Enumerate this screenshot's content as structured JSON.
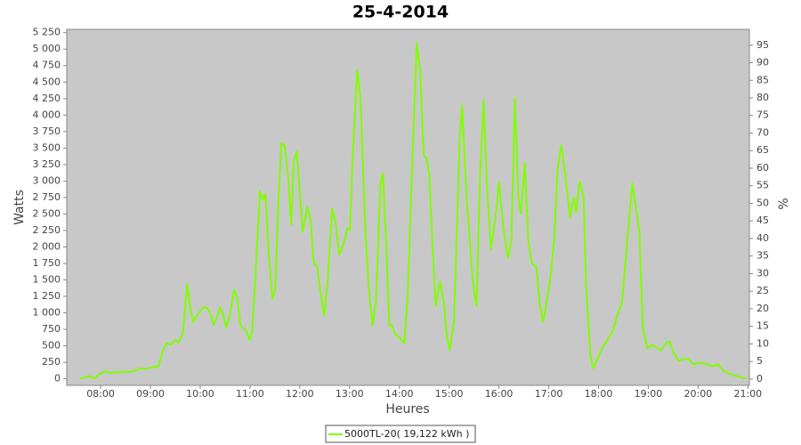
{
  "chart_data": {
    "type": "line",
    "title": "25-4-2014",
    "x_label": "Heures",
    "y_label": "Watts",
    "y2_label": "%",
    "xlim": [
      7.32,
      21.03
    ],
    "xticks": [
      {
        "value": 8,
        "label": "08:00"
      },
      {
        "value": 9,
        "label": "09:00"
      },
      {
        "value": 10,
        "label": "10:00"
      },
      {
        "value": 11,
        "label": "11:00"
      },
      {
        "value": 12,
        "label": "12:00"
      },
      {
        "value": 13,
        "label": "13:00"
      },
      {
        "value": 14,
        "label": "14:00"
      },
      {
        "value": 15,
        "label": "15:00"
      },
      {
        "value": 16,
        "label": "16:00"
      },
      {
        "value": 17,
        "label": "17:00"
      },
      {
        "value": 18,
        "label": "18:00"
      },
      {
        "value": 19,
        "label": "19:00"
      },
      {
        "value": 20,
        "label": "20:00"
      },
      {
        "value": 21,
        "label": "21:00"
      }
    ],
    "ylim": [
      -100,
      5300
    ],
    "yticks": [
      0,
      250,
      500,
      750,
      {
        "value": 1000,
        "label": "1 000"
      },
      {
        "value": 1250,
        "label": "1 250"
      },
      {
        "value": 1500,
        "label": "1 500"
      },
      {
        "value": 1750,
        "label": "1 750"
      },
      {
        "value": 2000,
        "label": "2 000"
      },
      {
        "value": 2250,
        "label": "2 250"
      },
      {
        "value": 2500,
        "label": "2 500"
      },
      {
        "value": 2750,
        "label": "2 750"
      },
      {
        "value": 3000,
        "label": "3 000"
      },
      {
        "value": 3250,
        "label": "3 250"
      },
      {
        "value": 3500,
        "label": "3 500"
      },
      {
        "value": 3750,
        "label": "3 750"
      },
      {
        "value": 4000,
        "label": "4 000"
      },
      {
        "value": 4250,
        "label": "4 250"
      },
      {
        "value": 4500,
        "label": "4 500"
      },
      {
        "value": 4750,
        "label": "4 750"
      },
      {
        "value": 5000,
        "label": "5 000"
      },
      {
        "value": 5250,
        "label": "5 250"
      }
    ],
    "y2lim": [
      -1.8,
      99.5
    ],
    "y2ticks": [
      0,
      5,
      10,
      15,
      20,
      25,
      30,
      35,
      40,
      45,
      50,
      55,
      60,
      65,
      70,
      75,
      80,
      85,
      90,
      95
    ],
    "grid": false,
    "legend": "bottom",
    "x": [
      7.59,
      7.77,
      7.87,
      8.0,
      8.09,
      8.2,
      8.3,
      8.66,
      8.79,
      8.89,
      9.02,
      9.16,
      9.25,
      9.32,
      9.41,
      9.5,
      9.57,
      9.65,
      9.74,
      9.81,
      9.86,
      9.91,
      10.06,
      10.13,
      10.2,
      10.27,
      10.34,
      10.4,
      10.45,
      10.52,
      10.59,
      10.68,
      10.74,
      10.81,
      10.92,
      10.99,
      11.04,
      11.1,
      11.2,
      11.26,
      11.31,
      11.38,
      11.45,
      11.51,
      11.56,
      11.63,
      11.7,
      11.76,
      11.83,
      11.88,
      11.94,
      11.99,
      12.06,
      12.15,
      12.22,
      12.28,
      12.35,
      12.42,
      12.49,
      12.56,
      12.65,
      12.72,
      12.79,
      12.87,
      12.96,
      13.01,
      13.06,
      13.15,
      13.22,
      13.31,
      13.38,
      13.46,
      13.53,
      13.62,
      13.67,
      13.74,
      13.8,
      13.85,
      13.92,
      14.01,
      14.1,
      14.17,
      14.26,
      14.35,
      14.42,
      14.49,
      14.55,
      14.6,
      14.67,
      14.73,
      14.82,
      14.89,
      14.96,
      15.01,
      15.1,
      15.21,
      15.26,
      15.35,
      15.48,
      15.55,
      15.62,
      15.69,
      15.76,
      15.84,
      15.92,
      16.0,
      16.09,
      16.18,
      16.25,
      16.32,
      16.39,
      16.44,
      16.52,
      16.59,
      16.66,
      16.75,
      16.82,
      16.89,
      16.96,
      17.03,
      17.11,
      17.18,
      17.25,
      17.32,
      17.43,
      17.5,
      17.55,
      17.62,
      17.7,
      17.75,
      17.84,
      17.89,
      17.96,
      18.07,
      18.18,
      18.29,
      18.38,
      18.47,
      18.57,
      18.68,
      18.77,
      18.82,
      18.89,
      18.98,
      19.07,
      19.16,
      19.25,
      19.36,
      19.43,
      19.52,
      19.61,
      19.7,
      19.81,
      19.9,
      20.0,
      20.08,
      20.18,
      20.29,
      20.4,
      20.5,
      20.61,
      20.83,
      20.97
    ],
    "series": [
      {
        "name": "5000TL-20( 19,122 kWh )",
        "color": "#80ff00",
        "values": [
          0,
          40,
          10,
          80,
          110,
          90,
          100,
          110,
          160,
          150,
          170,
          190,
          420,
          540,
          520,
          590,
          550,
          690,
          1430,
          1020,
          860,
          940,
          1080,
          1080,
          1000,
          820,
          940,
          1080,
          1000,
          780,
          940,
          1350,
          1240,
          810,
          730,
          590,
          700,
          1430,
          2850,
          2720,
          2800,
          1880,
          1210,
          1360,
          2500,
          3580,
          3530,
          3110,
          2340,
          3310,
          3450,
          2910,
          2230,
          2610,
          2400,
          1750,
          1720,
          1290,
          960,
          1480,
          2580,
          2370,
          1880,
          2020,
          2290,
          2260,
          3310,
          4680,
          4250,
          2380,
          1430,
          810,
          1160,
          2960,
          3120,
          1970,
          810,
          810,
          670,
          620,
          540,
          1290,
          3310,
          5090,
          4660,
          3390,
          3340,
          3100,
          1970,
          1100,
          1480,
          1160,
          620,
          430,
          890,
          3580,
          4150,
          2770,
          1430,
          1100,
          3040,
          4230,
          2910,
          1970,
          2370,
          2990,
          2290,
          1830,
          2100,
          4250,
          2770,
          2500,
          3280,
          2100,
          1750,
          1700,
          1130,
          860,
          1180,
          1510,
          2100,
          3180,
          3540,
          3180,
          2450,
          2750,
          2530,
          2990,
          2770,
          1430,
          350,
          160,
          270,
          460,
          590,
          730,
          970,
          1160,
          2020,
          2960,
          2500,
          2230,
          780,
          460,
          510,
          480,
          430,
          540,
          570,
          380,
          270,
          300,
          300,
          220,
          240,
          240,
          220,
          190,
          220,
          130,
          80,
          30,
          0
        ]
      }
    ]
  }
}
